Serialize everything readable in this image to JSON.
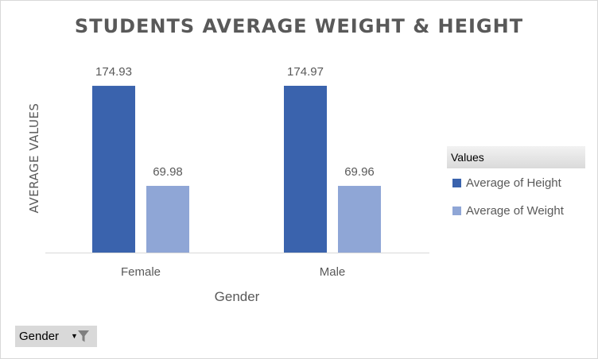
{
  "chart_data": {
    "type": "bar",
    "title": "STUDENTS AVERAGE WEIGHT & HEIGHT",
    "xlabel": "Gender",
    "ylabel": "AVERAGE VALUES",
    "categories": [
      "Female",
      "Male"
    ],
    "series": [
      {
        "name": "Average of Height",
        "values": [
          174.93,
          174.97
        ],
        "color": "#3a63ad"
      },
      {
        "name": "Average of Weight",
        "values": [
          69.98,
          69.96
        ],
        "color": "#8fa6d6"
      }
    ],
    "ylim": [
      0,
      174.97
    ],
    "grid": false,
    "legend": {
      "title": "Values",
      "position": "right"
    },
    "data_labels": true
  },
  "filter_button": {
    "label": "Gender"
  },
  "colors": {
    "axis": "#d9d9d9",
    "text": "#595959"
  }
}
